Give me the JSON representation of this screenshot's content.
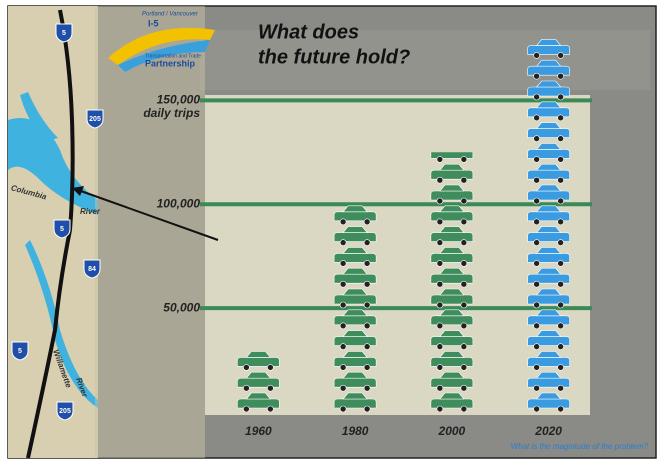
{
  "chart_data": {
    "type": "pictogram",
    "title": [
      "What does",
      "the future hold?"
    ],
    "y_annotation": "daily trips",
    "footnote": "What is the magnitude of the problem?",
    "categories": [
      "1960",
      "1980",
      "2000",
      "2020"
    ],
    "values": [
      30000,
      100000,
      125000,
      180000
    ],
    "colors": [
      "#3f8c5c",
      "#3f8c5c",
      "#3f8c5c",
      "#3a9be0"
    ],
    "ylim": [
      0,
      180000
    ],
    "yticks": [
      {
        "value": 50000,
        "label": "50,000"
      },
      {
        "value": 100000,
        "label": "100,000"
      },
      {
        "value": 150000,
        "label": "150,000"
      }
    ],
    "grid": true,
    "grid_color": "#3a8a58"
  },
  "logo": {
    "line1": "Portland / Vancouver",
    "line2": "I-5",
    "line3": "Transportation and Trade",
    "line4": "Partnership"
  },
  "map": {
    "labels": [
      "Columbia",
      "River",
      "Willamette",
      "River"
    ],
    "shields": [
      "5",
      "205",
      "5",
      "84",
      "5",
      "205"
    ]
  }
}
